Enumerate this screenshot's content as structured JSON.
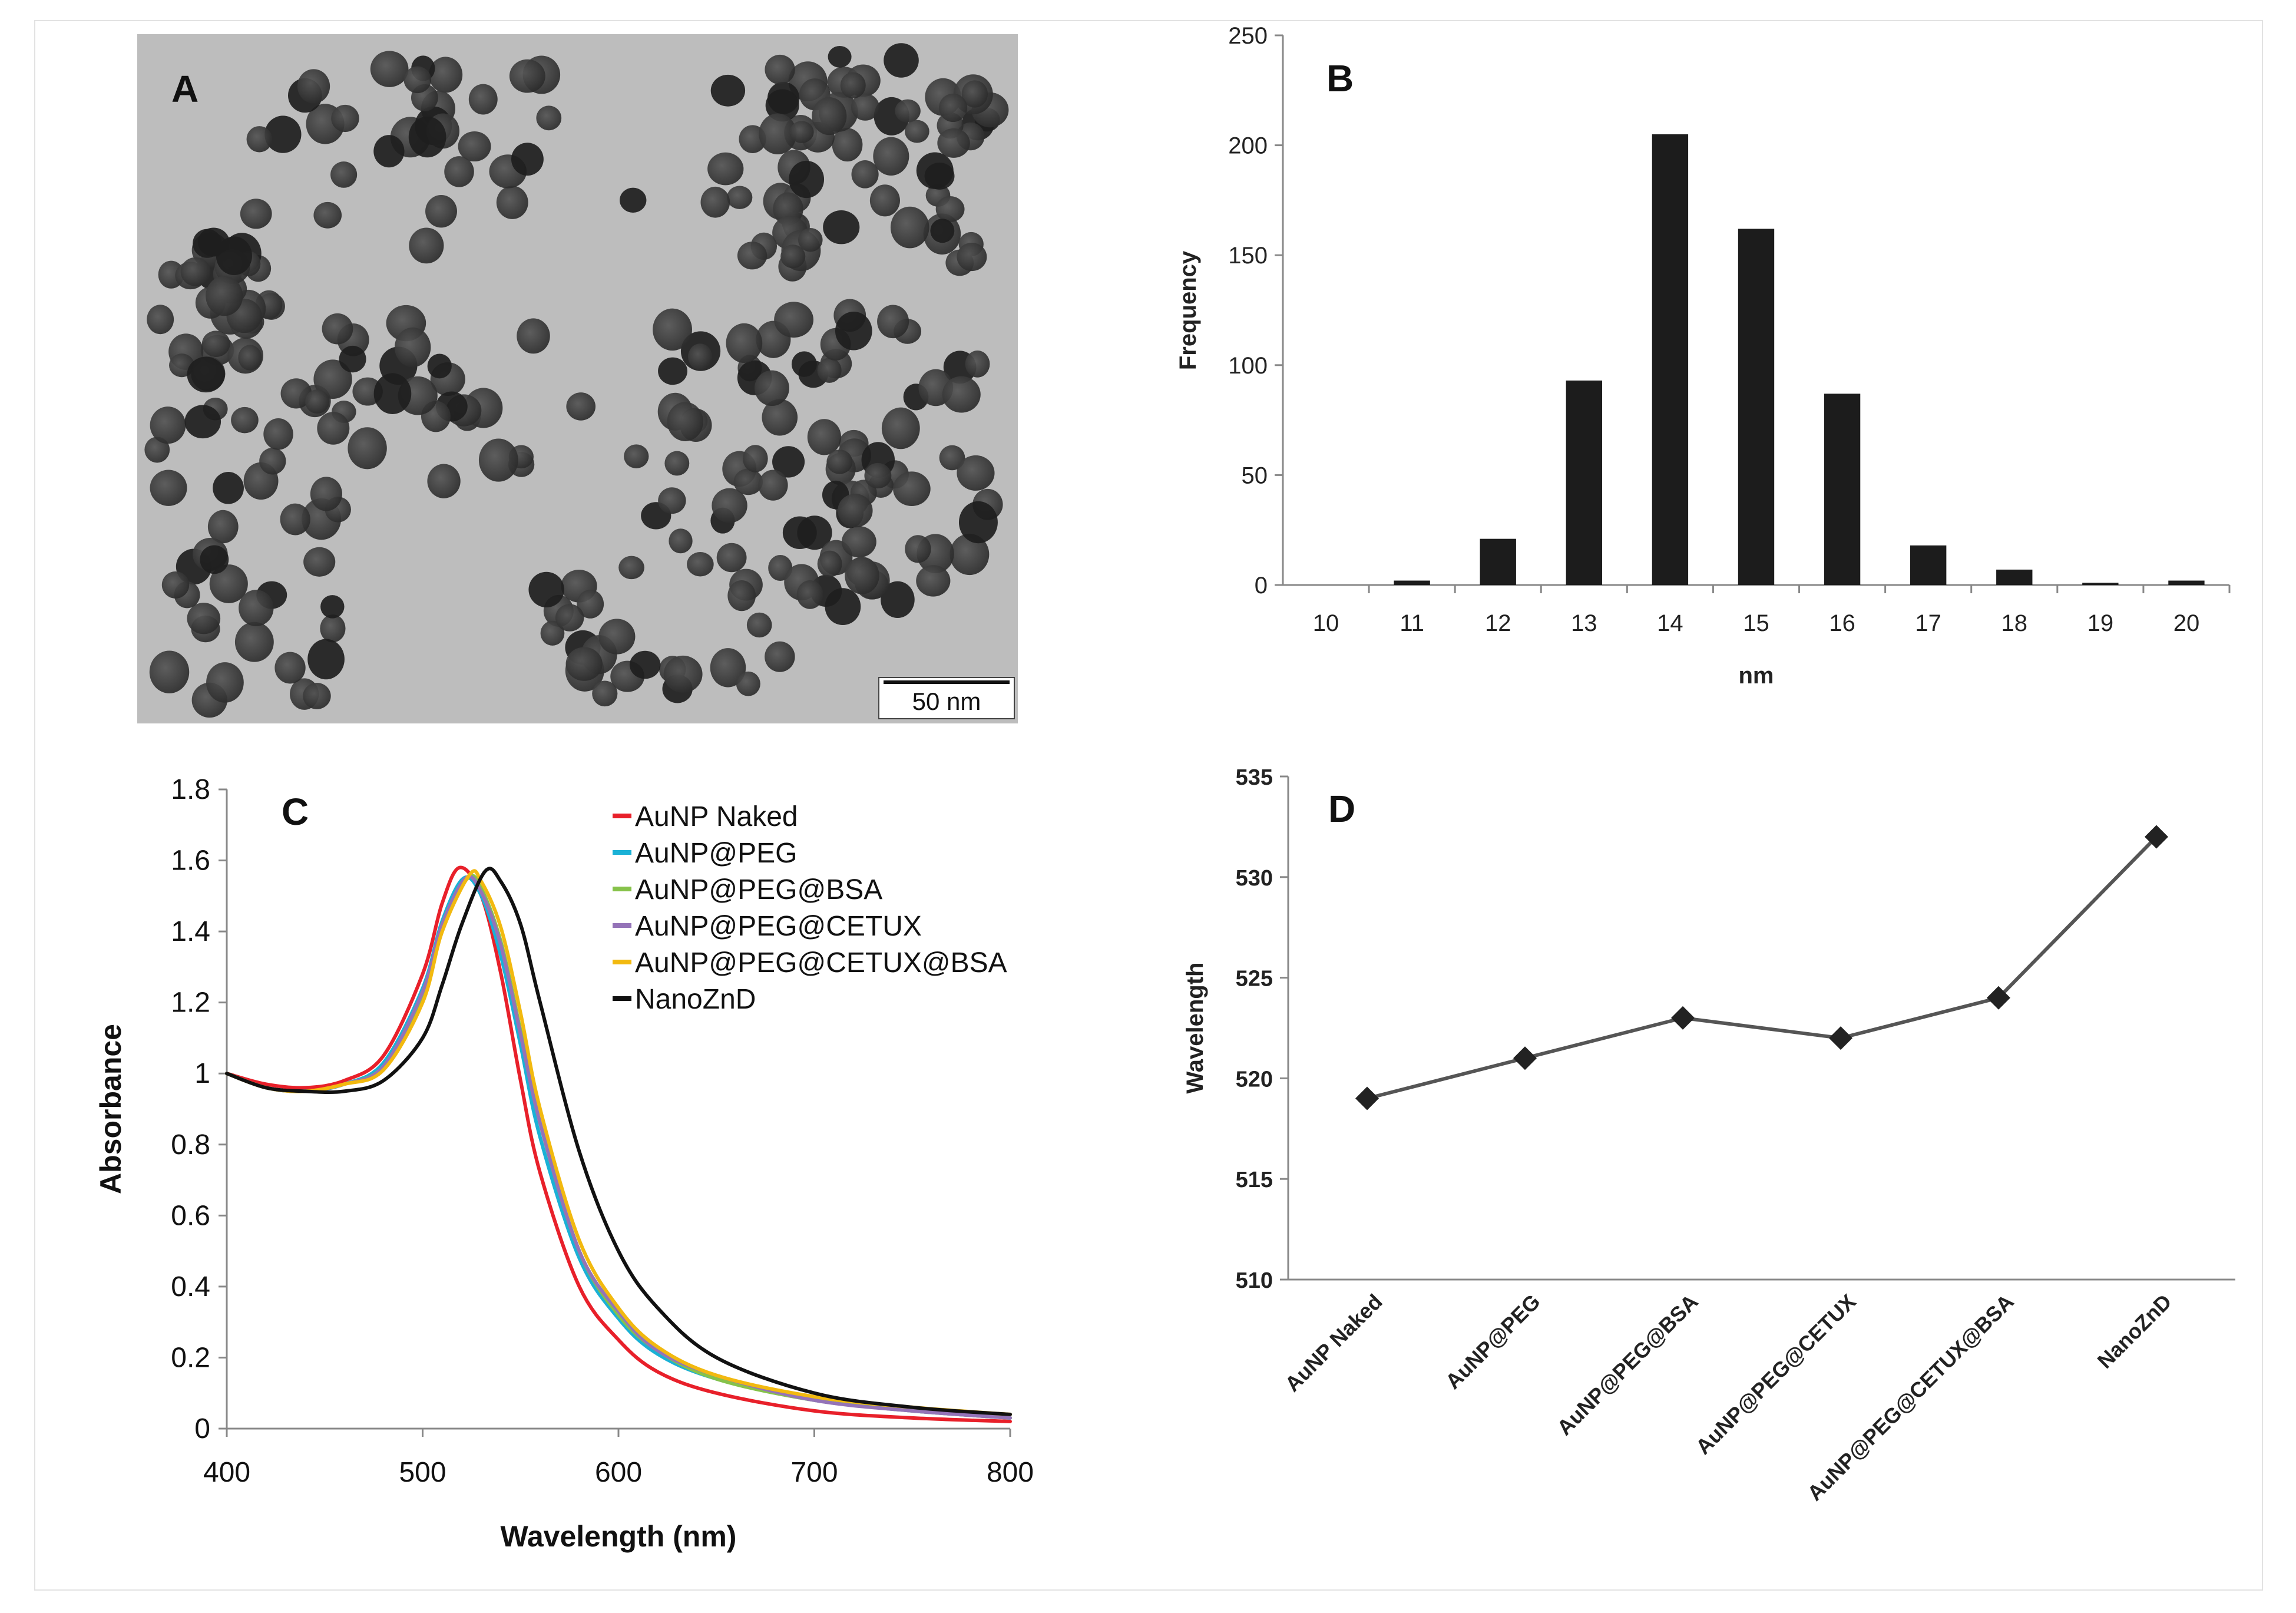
{
  "panels": {
    "A": {
      "label": "A",
      "scale_bar": "50 nm",
      "colors": {
        "background": "#bdbdbd",
        "particle": "#3a3a3a"
      }
    }
  },
  "chart_data": [
    {
      "panel": "B",
      "type": "bar",
      "xlabel": "nm",
      "ylabel": "Frequency",
      "categories": [
        "10",
        "11",
        "12",
        "13",
        "14",
        "15",
        "16",
        "17",
        "18",
        "19",
        "20"
      ],
      "values": [
        0,
        2,
        21,
        93,
        205,
        162,
        87,
        18,
        7,
        1,
        2
      ],
      "ylim": [
        0,
        250
      ],
      "yticks": [
        0,
        50,
        100,
        150,
        200,
        250
      ],
      "grid": false,
      "colors": {
        "bar": "#1c1c1c"
      }
    },
    {
      "panel": "C",
      "type": "line",
      "xlabel": "Wavelength (nm)",
      "ylabel": "Absorbance",
      "xlim": [
        400,
        800
      ],
      "ylim": [
        0,
        1.8
      ],
      "xticks": [
        400,
        500,
        600,
        700,
        800
      ],
      "yticks": [
        0,
        0.2,
        0.4,
        0.6,
        0.8,
        1,
        1.2,
        1.4,
        1.6,
        1.8
      ],
      "legend_position": "top-right",
      "grid": false,
      "series": [
        {
          "name": "AuNP Naked",
          "color": "#e8202a",
          "peak_x": 519,
          "peak_y": 1.58,
          "x": [
            400,
            420,
            440,
            460,
            480,
            500,
            510,
            519,
            530,
            540,
            550,
            560,
            580,
            600,
            620,
            650,
            700,
            750,
            800
          ],
          "y": [
            1.0,
            0.97,
            0.96,
            0.98,
            1.05,
            1.28,
            1.48,
            1.58,
            1.5,
            1.28,
            0.98,
            0.72,
            0.4,
            0.25,
            0.16,
            0.1,
            0.05,
            0.03,
            0.02
          ]
        },
        {
          "name": "AuNP@PEG",
          "color": "#1ab1d6",
          "peak_x": 521,
          "peak_y": 1.55,
          "x": [
            400,
            420,
            440,
            460,
            480,
            500,
            510,
            521,
            530,
            540,
            550,
            560,
            580,
            600,
            620,
            650,
            700,
            750,
            800
          ],
          "y": [
            1.0,
            0.96,
            0.95,
            0.97,
            1.03,
            1.24,
            1.43,
            1.55,
            1.5,
            1.33,
            1.08,
            0.82,
            0.48,
            0.31,
            0.21,
            0.14,
            0.08,
            0.05,
            0.03
          ]
        },
        {
          "name": "AuNP@PEG@BSA",
          "color": "#86c24a",
          "peak_x": 523,
          "peak_y": 1.55,
          "x": [
            400,
            420,
            440,
            460,
            480,
            500,
            510,
            523,
            530,
            540,
            550,
            560,
            580,
            600,
            620,
            650,
            700,
            750,
            800
          ],
          "y": [
            1.0,
            0.96,
            0.95,
            0.97,
            1.02,
            1.22,
            1.41,
            1.55,
            1.52,
            1.37,
            1.12,
            0.86,
            0.5,
            0.32,
            0.22,
            0.14,
            0.08,
            0.05,
            0.03
          ]
        },
        {
          "name": "AuNP@PEG@CETUX",
          "color": "#9473b8",
          "peak_x": 522,
          "peak_y": 1.55,
          "x": [
            400,
            420,
            440,
            460,
            480,
            500,
            510,
            522,
            530,
            540,
            550,
            560,
            580,
            600,
            620,
            650,
            700,
            750,
            800
          ],
          "y": [
            1.0,
            0.96,
            0.95,
            0.97,
            1.02,
            1.23,
            1.42,
            1.55,
            1.51,
            1.36,
            1.11,
            0.86,
            0.5,
            0.33,
            0.22,
            0.15,
            0.08,
            0.05,
            0.03
          ]
        },
        {
          "name": "AuNP@PEG@CETUX@BSA",
          "color": "#f2b90f",
          "peak_x": 524,
          "peak_y": 1.56,
          "x": [
            400,
            420,
            440,
            460,
            480,
            500,
            510,
            524,
            530,
            540,
            550,
            560,
            580,
            600,
            620,
            650,
            700,
            750,
            800
          ],
          "y": [
            1.0,
            0.96,
            0.95,
            0.97,
            1.01,
            1.2,
            1.4,
            1.56,
            1.54,
            1.41,
            1.17,
            0.9,
            0.53,
            0.34,
            0.23,
            0.15,
            0.09,
            0.06,
            0.04
          ]
        },
        {
          "name": "NanoZnD",
          "color": "#111111",
          "peak_x": 532,
          "peak_y": 1.57,
          "x": [
            400,
            420,
            440,
            460,
            480,
            500,
            510,
            520,
            532,
            540,
            550,
            560,
            580,
            600,
            620,
            650,
            700,
            750,
            800
          ],
          "y": [
            1.0,
            0.96,
            0.95,
            0.95,
            0.98,
            1.1,
            1.25,
            1.42,
            1.57,
            1.54,
            1.42,
            1.2,
            0.78,
            0.5,
            0.34,
            0.2,
            0.1,
            0.06,
            0.04
          ]
        }
      ]
    },
    {
      "panel": "D",
      "type": "line",
      "ylabel": "Wavelength",
      "categories": [
        "AuNP Naked",
        "AuNP@PEG",
        "AuNP@PEG@BSA",
        "AuNP@PEG@CETUX",
        "AuNP@PEG@CETUX@BSA",
        "NanoZnD"
      ],
      "values": [
        519,
        521,
        523,
        522,
        524,
        532
      ],
      "ylim": [
        510,
        535
      ],
      "yticks": [
        510,
        515,
        520,
        525,
        530,
        535
      ],
      "grid": false,
      "colors": {
        "line": "#555555",
        "marker": "#222222"
      }
    }
  ]
}
